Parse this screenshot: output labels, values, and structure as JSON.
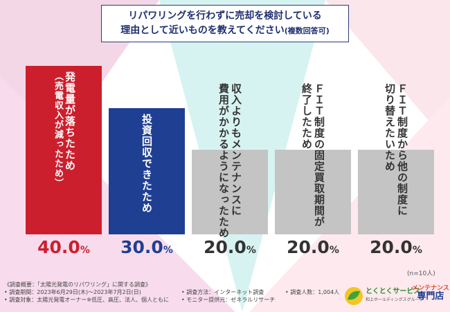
{
  "title": {
    "line1": "リパワリングを行わずに売却を検討している",
    "line2_main": "理由として近いものを教えてください",
    "line2_note": "(複数回答可)"
  },
  "chart_data": {
    "type": "bar",
    "orientation": "vertical",
    "ylim": [
      0,
      40
    ],
    "categories": [
      "発電量が落ちたため（売電収入が減ったため）",
      "投資回収できたため",
      "収入よりもメンテナンスに費用がかかるようになったため",
      "ＦＩＴ制度の固定買取期間が終了したため",
      "ＦＩＴ制度から他の制度に切り替えたいため"
    ],
    "values": [
      40.0,
      30.0,
      20.0,
      20.0,
      20.0
    ],
    "value_labels": [
      {
        "num": "40.0",
        "unit": "%"
      },
      {
        "num": "30.0",
        "unit": "%"
      },
      {
        "num": "20.0",
        "unit": "%"
      },
      {
        "num": "20.0",
        "unit": "%"
      },
      {
        "num": "20.0",
        "unit": "%"
      }
    ],
    "bars": [
      {
        "color": "#cc1f2d",
        "label_color": "#ffffff",
        "value_color": "#cc1f2d",
        "label_lines": [
          "発電量が落ちたため",
          "（売電収入が減ったため）"
        ]
      },
      {
        "color": "#1f3f93",
        "label_color": "#ffffff",
        "value_color": "#1f3f93",
        "label_lines": [
          "投資回収できたため"
        ]
      },
      {
        "color": "#c4c4c4",
        "label_color": "#333333",
        "value_color": "#333333",
        "label_lines": [
          "収入よりもメンテナンスに",
          "費用がかかるようになったため"
        ]
      },
      {
        "color": "#c4c4c4",
        "label_color": "#333333",
        "value_color": "#333333",
        "label_lines": [
          "ＦＩＴ制度の固定買取期間が",
          "終了したため"
        ]
      },
      {
        "color": "#c4c4c4",
        "label_color": "#333333",
        "value_color": "#333333",
        "label_lines": [
          "ＦＩＴ制度から他の制度に",
          "切り替えたいため"
        ]
      }
    ],
    "sample_note": "(n=10人)"
  },
  "footer": {
    "left": [
      "《調査概要：「太陽光発電のリパワリング」に関する調査》",
      "• 調査期間：2023年6月29日(木)～2023年7月2日(日)",
      "• 調査対象：太陽光発電オーナー※低圧、高圧、法人、個人ともに"
    ],
    "middle": [
      "• 調査方法：インターネット調査",
      "• モニター提供元：ゼネラルリサーチ"
    ],
    "right": [
      "• 調査人数：1,004人"
    ]
  },
  "logo": {
    "name": "とくとくサービス",
    "sub": "和上ホールディングスグループ",
    "right_top": "メンテナンス",
    "right_bottom": "専門店"
  }
}
